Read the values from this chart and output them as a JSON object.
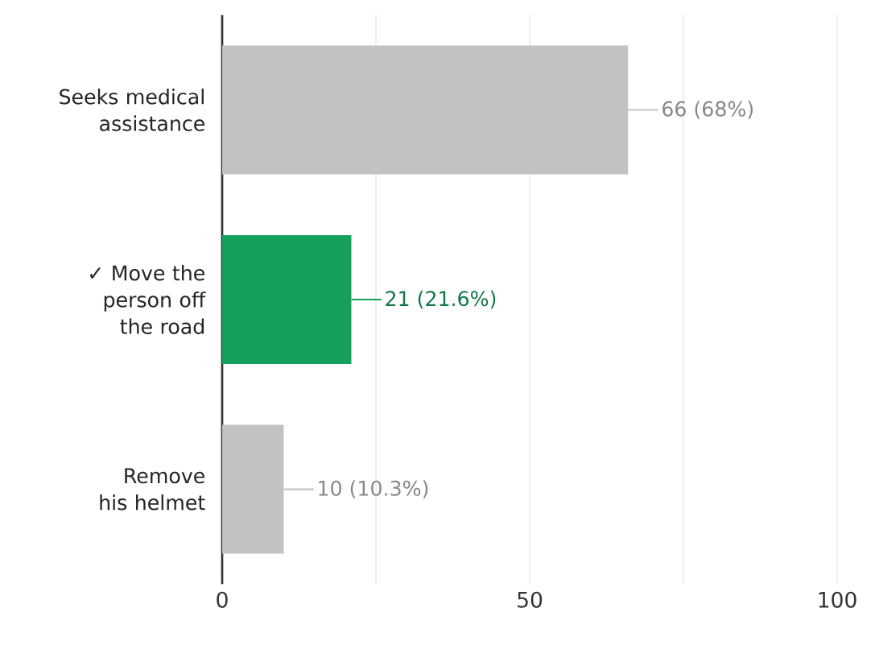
{
  "chart_data": {
    "type": "bar",
    "orientation": "horizontal",
    "categories": [
      "Seeks medical assistance",
      "✓ Move the person off the road",
      "Remove his helmet"
    ],
    "values": [
      66,
      21,
      10
    ],
    "colors": [
      "#c2c2c2",
      "#17a05d",
      "#c2c2c2"
    ],
    "value_labels": [
      "66 (68%)",
      "21 (21.6%)",
      "10 (10.3%)"
    ],
    "xlim": [
      0,
      100
    ],
    "xticks": [
      0,
      {
        "value": 25,
        "label": null
      },
      50,
      {
        "value": 75,
        "label": null
      },
      100
    ],
    "grid": "x"
  }
}
